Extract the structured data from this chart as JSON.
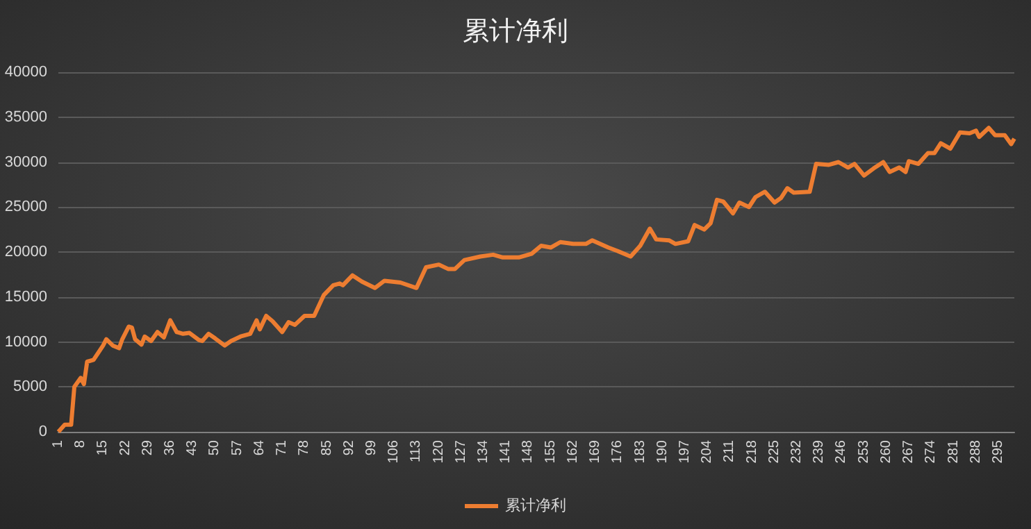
{
  "chart_data": {
    "type": "line",
    "title": "累计净利",
    "grid": "y",
    "legend": "bottom",
    "xlim": [
      1,
      300
    ],
    "ylim": [
      0,
      40000
    ],
    "xticks": [
      1,
      8,
      15,
      22,
      29,
      36,
      43,
      50,
      57,
      64,
      71,
      78,
      85,
      92,
      99,
      106,
      113,
      120,
      127,
      134,
      141,
      148,
      155,
      162,
      169,
      176,
      183,
      190,
      197,
      204,
      211,
      218,
      225,
      232,
      239,
      246,
      253,
      260,
      267,
      274,
      281,
      288,
      295
    ],
    "yticks": [
      0,
      5000,
      10000,
      15000,
      20000,
      25000,
      30000,
      35000,
      40000
    ],
    "series": [
      {
        "name": "累计净利",
        "color": "#ed7d31",
        "x": [
          1,
          3,
          5,
          6,
          8,
          9,
          10,
          12,
          15,
          16,
          18,
          20,
          21,
          23,
          24,
          25,
          27,
          28,
          30,
          32,
          34,
          36,
          38,
          40,
          42,
          45,
          46,
          48,
          50,
          53,
          55,
          58,
          61,
          63,
          64,
          66,
          68,
          71,
          73,
          75,
          78,
          81,
          84,
          87,
          89,
          90,
          93,
          96,
          100,
          103,
          108,
          113,
          116,
          120,
          123,
          125,
          128,
          133,
          137,
          140,
          145,
          149,
          152,
          155,
          158,
          162,
          166,
          168,
          173,
          176,
          180,
          183,
          186,
          188,
          192,
          194,
          198,
          200,
          203,
          205,
          207,
          209,
          212,
          214,
          217,
          219,
          222,
          225,
          227,
          229,
          231,
          236,
          238,
          242,
          245,
          248,
          250,
          253,
          256,
          259,
          261,
          264,
          266,
          267,
          270,
          273,
          275,
          277,
          280,
          283,
          286,
          288,
          289,
          292,
          294,
          297,
          299,
          300
        ],
        "values": [
          0,
          800,
          800,
          5000,
          6000,
          5300,
          7800,
          8000,
          9600,
          10300,
          9600,
          9300,
          10300,
          11700,
          11600,
          10300,
          9700,
          10600,
          10100,
          11100,
          10500,
          12400,
          11100,
          10900,
          11000,
          10200,
          10100,
          10900,
          10400,
          9600,
          10100,
          10600,
          10900,
          12400,
          11400,
          12900,
          12300,
          11100,
          12200,
          11900,
          12900,
          12900,
          15200,
          16300,
          16500,
          16300,
          17400,
          16700,
          16000,
          16800,
          16600,
          16000,
          18300,
          18600,
          18100,
          18100,
          19100,
          19500,
          19700,
          19400,
          19400,
          19800,
          20700,
          20500,
          21100,
          20900,
          20900,
          21300,
          20500,
          20100,
          19500,
          20700,
          22600,
          21400,
          21300,
          20900,
          21200,
          23000,
          22500,
          23200,
          25800,
          25600,
          24300,
          25500,
          25000,
          26100,
          26700,
          25500,
          26000,
          27100,
          26600,
          26700,
          29800,
          29700,
          30000,
          29400,
          29800,
          28500,
          29300,
          30000,
          28900,
          29400,
          28900,
          30100,
          29800,
          31000,
          31000,
          32100,
          31500,
          33300,
          33200,
          33500,
          32800,
          33800,
          33000,
          33000,
          32000,
          32600
        ]
      }
    ]
  }
}
